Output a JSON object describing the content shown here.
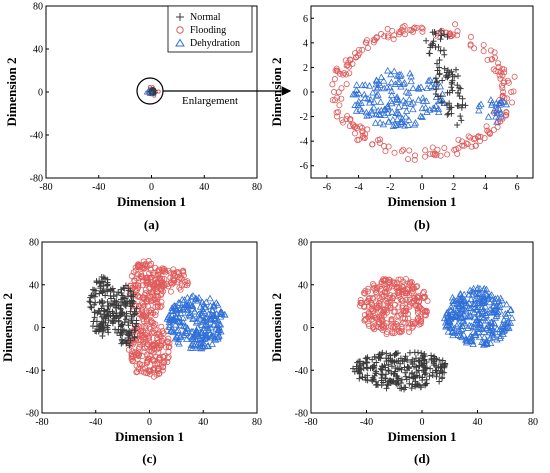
{
  "legend": {
    "normal": "Normal",
    "flooding": "Flooding",
    "dehydration": "Dehydration"
  },
  "colors": {
    "normal": "#3a3a3a",
    "flooding": "#e05a5a",
    "dehydration": "#2f6fd6"
  },
  "chart_data": [
    {
      "panel": "(a)",
      "type": "scatter",
      "xlabel": "Dimension 1",
      "ylabel": "Dimension 2",
      "xlim": [
        -80,
        80
      ],
      "ylim": [
        -80,
        80
      ],
      "xticks": [
        -80,
        -40,
        0,
        40,
        80
      ],
      "yticks": [
        -80,
        -40,
        0,
        40,
        80
      ],
      "annotation": "Enlargement",
      "legend_position": "top-right",
      "series": [
        {
          "name": "Normal",
          "marker": "+",
          "clusters": [
            {
              "cx": 1,
              "cy": 0,
              "rx": 3,
              "ry": 4
            }
          ]
        },
        {
          "name": "Flooding",
          "marker": "o",
          "clusters": [
            {
              "cx": 0,
              "cy": 0,
              "rx": 6,
              "ry": 5
            }
          ]
        },
        {
          "name": "Dehydration",
          "marker": "^",
          "clusters": [
            {
              "cx": -1,
              "cy": 0,
              "rx": 4,
              "ry": 3
            }
          ]
        }
      ]
    },
    {
      "panel": "(b)",
      "type": "scatter",
      "xlabel": "Dimension 1",
      "ylabel": "Dimension 2",
      "xlim": [
        -7,
        7
      ],
      "ylim": [
        -7,
        7
      ],
      "xticks": [
        -6,
        -4,
        -2,
        0,
        2,
        4,
        6
      ],
      "yticks": [
        -6,
        -4,
        -2,
        0,
        2,
        4,
        6
      ],
      "series": [
        {
          "name": "Normal",
          "marker": "+",
          "clusters": [
            {
              "cx": 1.0,
              "cy": 4.0,
              "rx": 0.8,
              "ry": 1.2
            },
            {
              "cx": 1.6,
              "cy": 1.0,
              "rx": 0.9,
              "ry": 2.0
            },
            {
              "cx": 2.2,
              "cy": -1.5,
              "rx": 0.7,
              "ry": 1.2
            }
          ]
        },
        {
          "name": "Flooding",
          "marker": "o",
          "clusters": [
            {
              "cx": 0,
              "cy": 0,
              "rx": 5.8,
              "ry": 5.5,
              "ring": true
            }
          ]
        },
        {
          "name": "Dehydration",
          "marker": "^",
          "clusters": [
            {
              "cx": -1.5,
              "cy": -0.5,
              "rx": 3.0,
              "ry": 2.3
            },
            {
              "cx": 4.5,
              "cy": -1.5,
              "rx": 1.0,
              "ry": 1.0
            }
          ]
        }
      ]
    },
    {
      "panel": "(c)",
      "type": "scatter",
      "xlabel": "Dimension 1",
      "ylabel": "Dimension 2",
      "xlim": [
        -80,
        80
      ],
      "ylim": [
        -80,
        80
      ],
      "xticks": [
        -80,
        -40,
        0,
        40,
        80
      ],
      "yticks": [
        -80,
        -40,
        0,
        40,
        80
      ],
      "series": [
        {
          "name": "Normal",
          "marker": "+",
          "clusters": [
            {
              "cx": -35,
              "cy": 20,
              "rx": 10,
              "ry": 28
            },
            {
              "cx": -18,
              "cy": 10,
              "rx": 9,
              "ry": 30
            }
          ]
        },
        {
          "name": "Flooding",
          "marker": "o",
          "clusters": [
            {
              "cx": -2,
              "cy": 35,
              "rx": 13,
              "ry": 28
            },
            {
              "cx": 0,
              "cy": -20,
              "rx": 16,
              "ry": 28
            },
            {
              "cx": 15,
              "cy": 45,
              "rx": 15,
              "ry": 12
            }
          ]
        },
        {
          "name": "Dehydration",
          "marker": "^",
          "clusters": [
            {
              "cx": 35,
              "cy": 5,
              "rx": 22,
              "ry": 25
            }
          ]
        }
      ]
    },
    {
      "panel": "(d)",
      "type": "scatter",
      "xlabel": "Dimension 1",
      "ylabel": "Dimension 2",
      "xlim": [
        -80,
        80
      ],
      "ylim": [
        -80,
        80
      ],
      "xticks": [
        -80,
        -40,
        0,
        40,
        80
      ],
      "yticks": [
        -80,
        -40,
        0,
        40,
        80
      ],
      "series": [
        {
          "name": "Normal",
          "marker": "+",
          "clusters": [
            {
              "cx": -15,
              "cy": -40,
              "rx": 35,
              "ry": 18
            }
          ]
        },
        {
          "name": "Flooding",
          "marker": "o",
          "clusters": [
            {
              "cx": -20,
              "cy": 20,
              "rx": 25,
              "ry": 27
            }
          ]
        },
        {
          "name": "Dehydration",
          "marker": "^",
          "clusters": [
            {
              "cx": 40,
              "cy": 10,
              "rx": 25,
              "ry": 27
            }
          ]
        }
      ]
    }
  ]
}
